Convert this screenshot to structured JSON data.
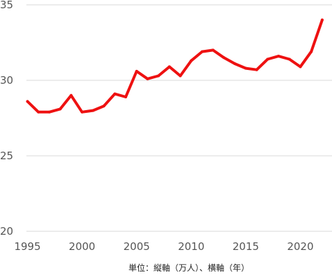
{
  "chart_data": {
    "type": "line",
    "title": "",
    "xlabel": "",
    "ylabel": "",
    "x": [
      1995,
      1996,
      1997,
      1998,
      1999,
      2000,
      2001,
      2002,
      2003,
      2004,
      2005,
      2006,
      2007,
      2008,
      2009,
      2010,
      2011,
      2012,
      2013,
      2014,
      2015,
      2016,
      2017,
      2018,
      2019,
      2020,
      2021,
      2022
    ],
    "series": [
      {
        "values": [
          28.6,
          27.9,
          27.9,
          28.1,
          29.0,
          27.9,
          28.0,
          28.3,
          29.1,
          28.9,
          30.6,
          30.1,
          30.3,
          30.9,
          30.3,
          31.3,
          31.9,
          32.0,
          31.5,
          31.1,
          30.8,
          30.7,
          31.4,
          31.6,
          31.4,
          30.9,
          31.9,
          34.0
        ],
        "color": "#ee1111"
      }
    ],
    "xlim": [
      1994.9,
      2022.9
    ],
    "ylim": [
      20,
      35
    ],
    "x_ticks": [
      "1995",
      "2000",
      "2005",
      "2010",
      "2015",
      "2020"
    ],
    "y_ticks": [
      "20",
      "25",
      "30",
      "35"
    ],
    "grid": true,
    "grid_color": "#d9d9d9",
    "legend": "none",
    "unit_note": "単位：縦軸（万人）、横軸（年）"
  }
}
